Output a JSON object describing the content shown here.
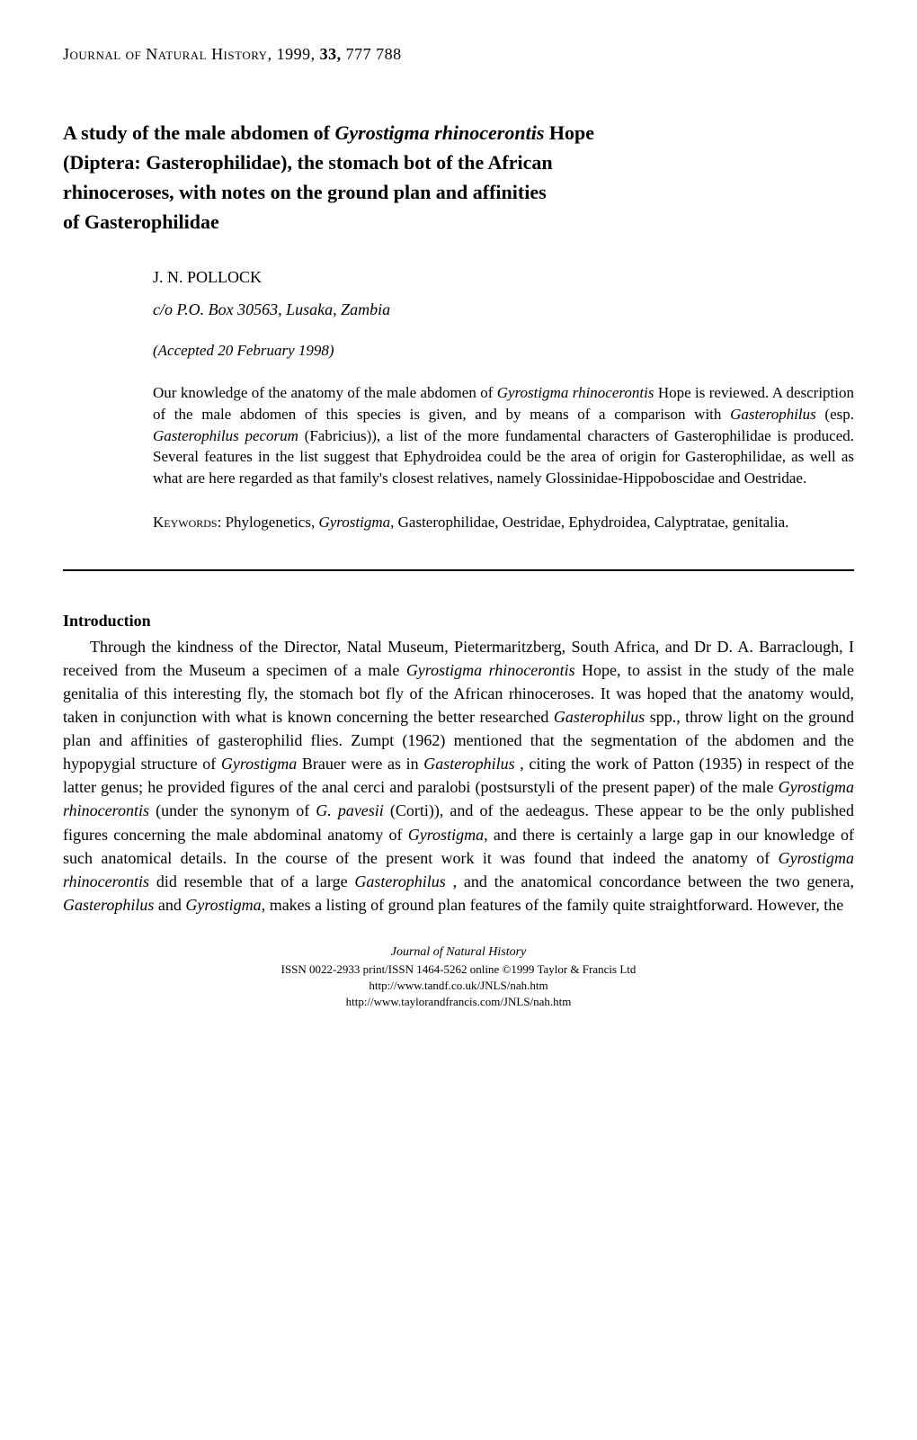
{
  "header": {
    "journal_name": "Journal of Natural History",
    "year": "1999",
    "volume": "33,",
    "pages": "777  788"
  },
  "title": {
    "line1_part1": "A study of the male abdomen of ",
    "line1_italic": "Gyrostigma rhinocerontis",
    "line1_part2": " Hope",
    "line2": "(Diptera: Gasterophilidae), the stomach bot of the African",
    "line3": "rhinoceroses, with notes on the ground plan and affinities",
    "line4": "of Gasterophilidae"
  },
  "author": {
    "name": "J. N. POLLOCK",
    "address": "c/o P.O. Box 30563, Lusaka, Zambia",
    "accepted": "(Accepted 20 February 1998)"
  },
  "abstract": {
    "text_part1": "Our knowledge of the anatomy of the male abdomen of ",
    "text_italic1": "Gyrostigma rhinocerontis",
    "text_part2": " Hope is reviewed. A description of the male abdomen of this species is given, and by means of a comparison with ",
    "text_italic2": "Gasterophilus",
    "text_part3": " (esp. ",
    "text_italic3": "Gasterophilus pecorum",
    "text_part4": " (Fabricius)), a list of the more fundamental characters of Gasterophilidae is produced. Several features in the list suggest that Ephydroidea could be the area of origin for Gasterophilidae, as well as what are here regarded as that family's closest relatives, namely Glossinidae-Hippoboscidae and Oestridae."
  },
  "keywords": {
    "label": "Keywords:",
    "text_part1": " Phylogenetics, ",
    "text_italic1": "Gyrostigma",
    "text_part2": ", Gasterophilidae, Oestridae, Ephydroidea, Calyptratae, genitalia."
  },
  "section": {
    "heading": "Introduction",
    "body_part1": "Through the kindness of the Director, Natal Museum, Pietermaritzberg, South Africa, and Dr D. A. Barraclough, I received from the Museum a specimen of a male ",
    "body_italic1": "Gyrostigma rhinocerontis",
    "body_part2": " Hope, to assist in the study of the male genitalia of this interesting fly, the stomach bot fly of the African rhinoceroses. It was hoped that the anatomy would, taken in conjunction with what is known concerning the better researched ",
    "body_italic2": "Gasterophilus",
    "body_part3": " spp., throw light on the ground plan and affinities of gasterophilid flies. Zumpt (1962) mentioned that the segmentation of the abdomen and the hypopygial structure of ",
    "body_italic3": "Gyrostigma",
    "body_part4": " Brauer were as in ",
    "body_italic4": "Gasterophilus",
    "body_part5": " , citing the work of Patton (1935) in respect of the latter genus; he provided figures of the anal cerci and paralobi (postsurstyli of the present paper) of the male ",
    "body_italic5": "Gyrostigma rhinocerontis",
    "body_part6": " (under the synonym of ",
    "body_italic6": "G. pavesii",
    "body_part7": " (Corti)), and of the aedeagus. These appear to be the only published figures concerning the male abdominal anatomy of ",
    "body_italic7": "Gyrostigma",
    "body_part8": ", and there is certainly a large gap in our knowledge of such anatomical details. In the course of the present work it was found that indeed the anatomy of ",
    "body_italic8": "Gyrostigma rhinocerontis",
    "body_part9": " did resemble that of a large ",
    "body_italic9": "Gasterophilus",
    "body_part10": " , and the anatomical concordance between the two genera, ",
    "body_italic10": "Gasterophilus",
    "body_part11": " and ",
    "body_italic11": "Gyrostigma",
    "body_part12": ", makes a listing of ground plan features of the family quite straightforward. However, the"
  },
  "footer": {
    "journal": "Journal of Natural History",
    "issn": "ISSN 0022-2933 print/ISSN 1464-5262 online ©1999 Taylor & Francis Ltd",
    "url1": "http://www.tandf.co.uk/JNLS/nah.htm",
    "url2": "http://www.taylorandfrancis.com/JNLS/nah.htm"
  }
}
